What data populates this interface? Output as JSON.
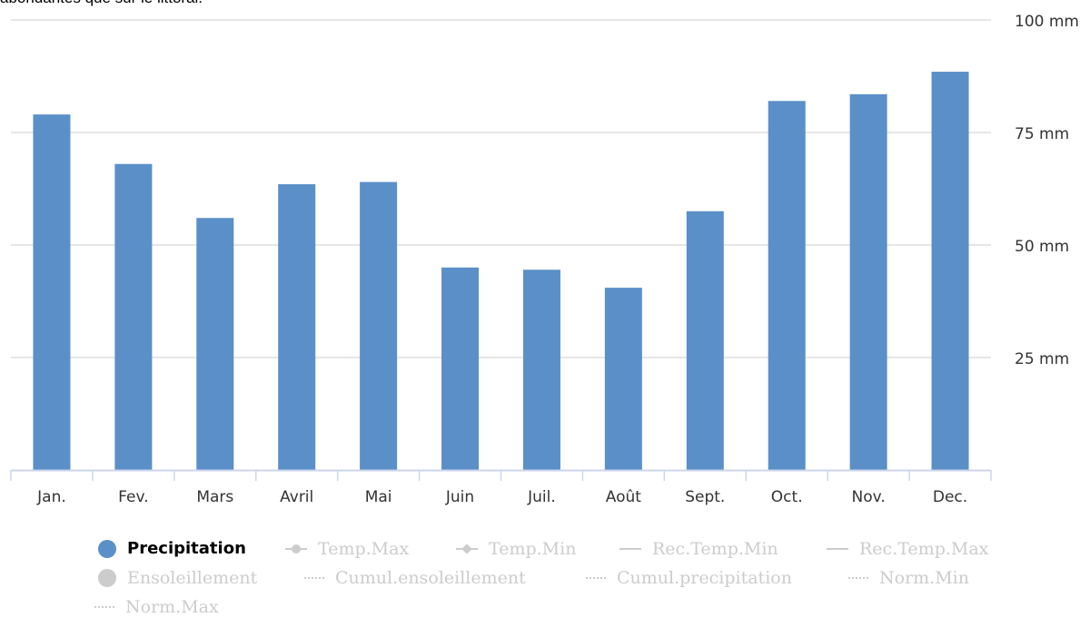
{
  "intro_text": "abondantes que sur le littoral.",
  "chart_data": {
    "type": "bar",
    "categories": [
      "Jan.",
      "Fev.",
      "Mars",
      "Avril",
      "Mai",
      "Juin",
      "Juil.",
      "Août",
      "Sept.",
      "Oct.",
      "Nov.",
      "Dec."
    ],
    "series": [
      {
        "name": "Precipitation",
        "values": [
          79,
          68,
          56,
          63.5,
          64,
          45,
          44.5,
          40.5,
          57.5,
          82,
          83.5,
          88.5
        ]
      }
    ],
    "y_ticks": [
      "25 mm",
      "50 mm",
      "75 mm",
      "100 mm"
    ],
    "ylim": [
      0,
      100
    ],
    "grid": true,
    "legend_placement": "bottom",
    "bar_color": "#5b8fc7",
    "grid_color": "#e6e6e6",
    "axis_color": "#ccd6eb"
  },
  "legend": {
    "items": [
      {
        "label": "Precipitation",
        "active": true,
        "icon": "dot-icon"
      },
      {
        "label": "Temp.Max",
        "active": false,
        "icon": "line-circle-icon"
      },
      {
        "label": "Temp.Min",
        "active": false,
        "icon": "line-diamond-icon"
      },
      {
        "label": "Rec.Temp.Min",
        "active": false,
        "icon": "line-icon"
      },
      {
        "label": "Rec.Temp.Max",
        "active": false,
        "icon": "line-icon"
      },
      {
        "label": "Ensoleillement",
        "active": false,
        "icon": "dot-icon"
      },
      {
        "label": "Cumul.ensoleillement",
        "active": false,
        "icon": "dotted-line-icon"
      },
      {
        "label": "Cumul.precipitation",
        "active": false,
        "icon": "dotted-line-icon"
      },
      {
        "label": "Norm.Min",
        "active": false,
        "icon": "dotted-line-icon"
      },
      {
        "label": "Norm.Max",
        "active": false,
        "icon": "dotted-line-icon"
      }
    ]
  }
}
